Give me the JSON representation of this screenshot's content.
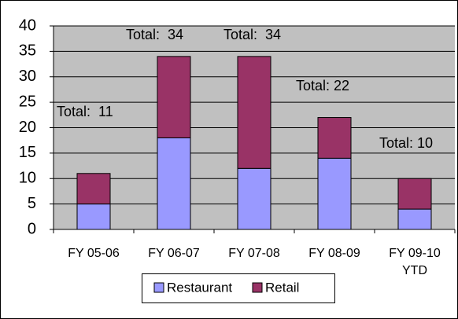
{
  "chart_data": {
    "type": "stacked_bar",
    "categories": [
      "FY 05-06",
      "FY 06-07",
      "FY 07-08",
      "FY 08-09",
      "FY 09-10 YTD"
    ],
    "series": [
      {
        "name": "Restaurant",
        "color": "#9999ff",
        "values": [
          5,
          18,
          12,
          14,
          4
        ]
      },
      {
        "name": "Retail",
        "color": "#993366",
        "values": [
          6,
          16,
          22,
          8,
          6
        ]
      }
    ],
    "annotations": [
      "Total:  11",
      "Total:  34",
      "Total:  34",
      "Total: 22",
      "Total: 10"
    ],
    "ylim": [
      0,
      40
    ],
    "yticks": [
      0,
      5,
      10,
      15,
      20,
      25,
      30,
      35,
      40
    ],
    "grid": true
  }
}
